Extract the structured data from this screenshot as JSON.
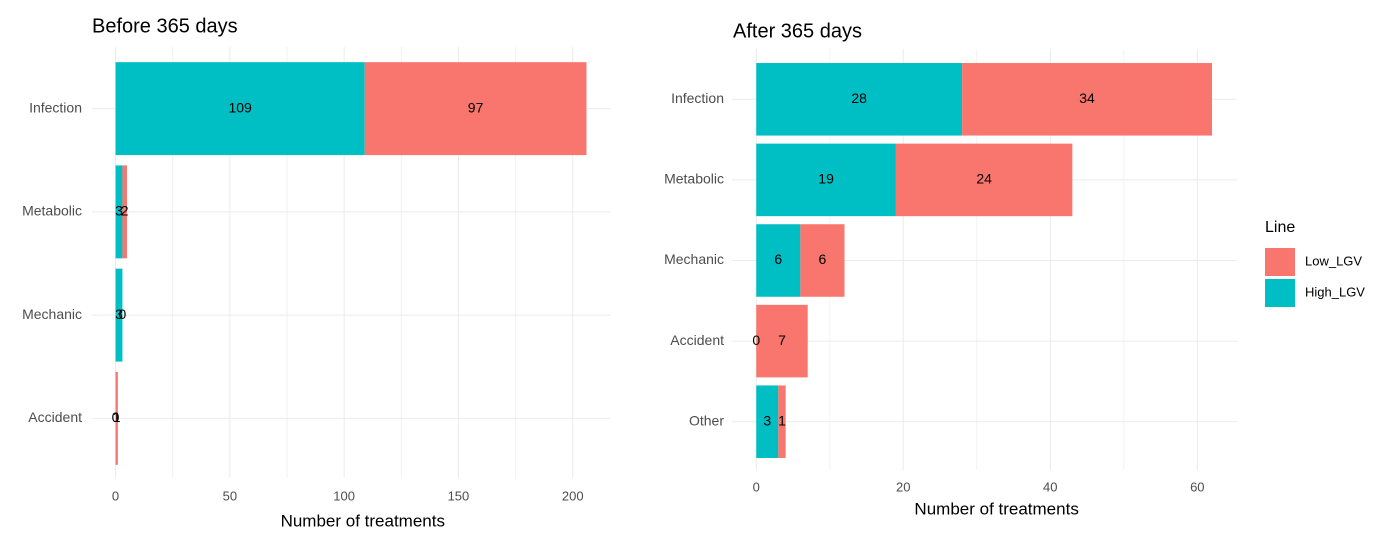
{
  "chart_data": [
    {
      "type": "bar",
      "orientation": "horizontal",
      "stacked": true,
      "title": "Before 365 days",
      "x_label": "Number of treatments",
      "categories": [
        "Infection",
        "Metabolic",
        "Mechanic",
        "Accident"
      ],
      "series": [
        {
          "color": "#00BFC4",
          "values": [
            109,
            3,
            3,
            0
          ]
        },
        {
          "color": "#F8766D",
          "values": [
            97,
            2,
            0,
            1
          ]
        }
      ],
      "xlim": [
        -10.3,
        216.3
      ],
      "xticks": [
        0,
        50,
        100,
        150,
        200
      ],
      "minor_xticks": [
        25,
        75,
        125,
        175
      ],
      "grid": true,
      "data_labels": true
    },
    {
      "type": "bar",
      "orientation": "horizontal",
      "stacked": true,
      "title": "After 365 days",
      "x_label": "Number of treatments",
      "categories": [
        "Infection",
        "Metabolic",
        "Mechanic",
        "Accident",
        "Other"
      ],
      "series": [
        {
          "name": "High_LGV",
          "color": "#00BFC4",
          "values": [
            28,
            19,
            6,
            0,
            3
          ]
        },
        {
          "name": "Low_LGV",
          "color": "#F8766D",
          "values": [
            34,
            24,
            6,
            7,
            1
          ]
        }
      ],
      "xlim": [
        -3.3,
        65.4
      ],
      "xticks": [
        0,
        20,
        40,
        60
      ],
      "minor_xticks": [
        10,
        30,
        50
      ],
      "grid": true,
      "data_labels": true,
      "legend": "right",
      "legend_title": "Line"
    }
  ]
}
